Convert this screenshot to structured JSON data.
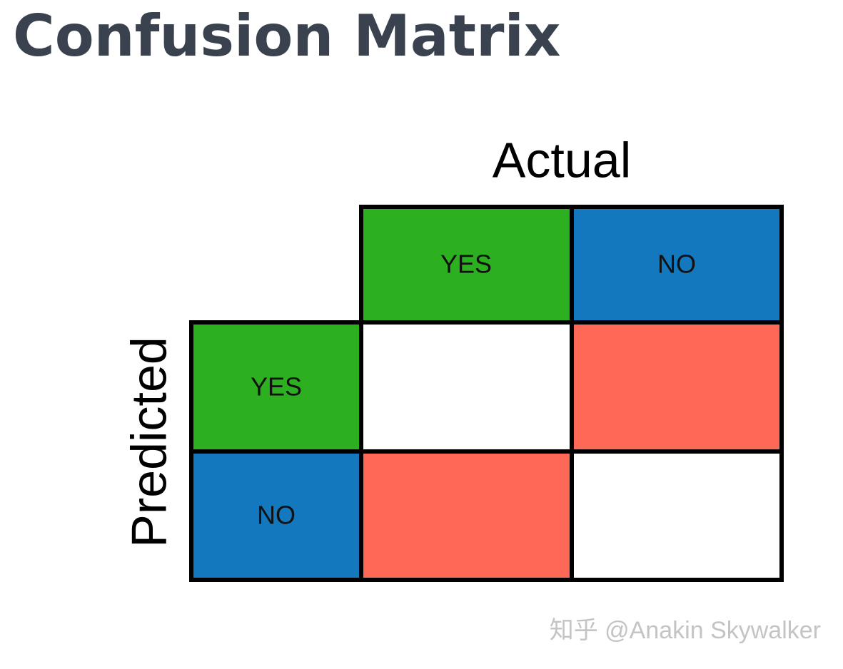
{
  "title": "Confusion Matrix",
  "axes": {
    "actual": "Actual",
    "predicted": "Predicted"
  },
  "columns": [
    "YES",
    "NO"
  ],
  "rows": [
    "YES",
    "NO"
  ],
  "watermark": "知乎 @Anakin Skywalker"
}
